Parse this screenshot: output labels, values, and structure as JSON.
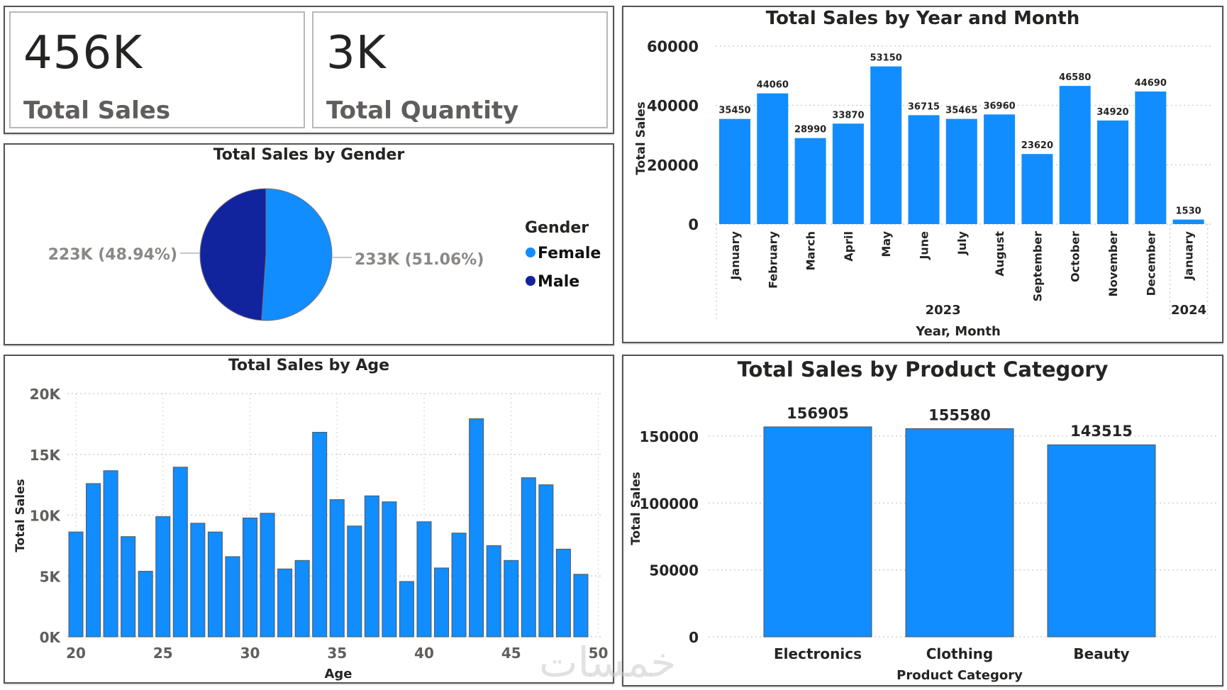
{
  "kpis": [
    {
      "value": "456K",
      "label": "Total Sales"
    },
    {
      "value": "3K",
      "label": "Total Quantity"
    }
  ],
  "colors": {
    "primary_bar": "#118DFF",
    "female": "#118DFF",
    "male": "#12239E",
    "axis_text": "#252423",
    "muted_text": "#605e5c",
    "label_grey": "#8a8886"
  },
  "watermark": "خمسات",
  "chart_data": [
    {
      "id": "gender",
      "type": "pie",
      "title": "Total Sales by Gender",
      "legend_title": "Gender",
      "legend_position": "right",
      "slices": [
        {
          "name": "Female",
          "value": 233000,
          "percent": 51.06,
          "label": "233K (51.06%)"
        },
        {
          "name": "Male",
          "value": 223000,
          "percent": 48.94,
          "label": "223K (48.94%)"
        }
      ]
    },
    {
      "id": "month",
      "type": "bar",
      "title": "Total Sales by Year and Month",
      "xlabel": "Year, Month",
      "ylabel": "Total Sales",
      "ylim": [
        0,
        60000
      ],
      "yticks": [
        "0",
        "20000",
        "40000",
        "60000"
      ],
      "ytick_values": [
        0,
        20000,
        40000,
        60000
      ],
      "grid": true,
      "groups": [
        {
          "year": "2023",
          "categories": [
            "January",
            "February",
            "March",
            "April",
            "May",
            "June",
            "July",
            "August",
            "September",
            "October",
            "November",
            "December"
          ],
          "values": [
            35450,
            44060,
            28990,
            33870,
            53150,
            36715,
            35465,
            36960,
            23620,
            46580,
            34920,
            44690
          ]
        },
        {
          "year": "2024",
          "categories": [
            "January"
          ],
          "values": [
            1530
          ]
        }
      ]
    },
    {
      "id": "age",
      "type": "bar",
      "title": "Total Sales by Age",
      "xlabel": "Age",
      "ylabel": "Total Sales",
      "ylim": [
        0,
        20000
      ],
      "xlim": [
        20,
        50
      ],
      "yticks": [
        "0K",
        "5K",
        "10K",
        "15K",
        "20K"
      ],
      "ytick_values": [
        0,
        5000,
        10000,
        15000,
        20000
      ],
      "xticks": [
        "20",
        "25",
        "30",
        "35",
        "40",
        "45",
        "50"
      ],
      "xtick_values": [
        20,
        25,
        30,
        35,
        40,
        45,
        50
      ],
      "grid": true,
      "x": [
        20,
        21,
        22,
        23,
        24,
        25,
        26,
        27,
        28,
        29,
        30,
        31,
        32,
        33,
        34,
        35,
        36,
        37,
        38,
        39,
        40,
        41,
        42,
        43,
        44,
        45,
        46,
        47,
        48,
        49
      ],
      "values": [
        8620,
        12600,
        13660,
        8240,
        5390,
        9880,
        13950,
        9340,
        8620,
        6590,
        9770,
        10160,
        5580,
        6280,
        16820,
        11280,
        9110,
        11590,
        11100,
        4550,
        9460,
        5660,
        8530,
        17930,
        7500,
        6280,
        13080,
        12500,
        7210,
        5140
      ]
    },
    {
      "id": "category",
      "type": "bar",
      "title": "Total Sales by Product Category",
      "xlabel": "Product Category",
      "ylabel": "Total Sales",
      "ylim": [
        0,
        165000
      ],
      "yticks": [
        "0",
        "50000",
        "100000",
        "150000"
      ],
      "ytick_values": [
        0,
        50000,
        100000,
        150000
      ],
      "grid": true,
      "categories": [
        "Electronics",
        "Clothing",
        "Beauty"
      ],
      "values": [
        156905,
        155580,
        143515
      ],
      "data_labels": [
        "156905",
        "155580",
        "143515"
      ]
    }
  ]
}
